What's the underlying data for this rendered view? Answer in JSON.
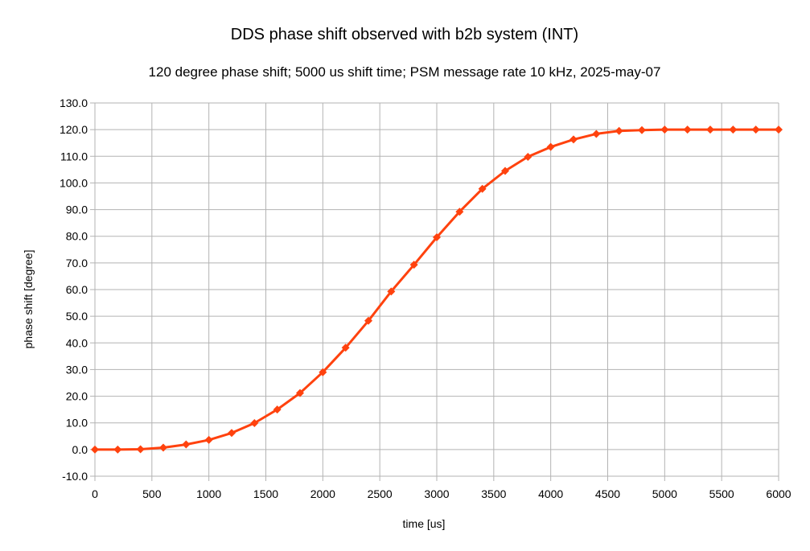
{
  "chart_data": {
    "type": "line",
    "title": "DDS phase shift observed with b2b system (INT)",
    "subtitle": "120 degree phase shift; 5000 us shift time; PSM message rate 10 kHz, 2025-may-07",
    "xlabel": "time [us]",
    "ylabel": "phase shift [degree]",
    "xlim": [
      0,
      6000
    ],
    "ylim": [
      -10,
      130
    ],
    "xticks": [
      0,
      500,
      1000,
      1500,
      2000,
      2500,
      3000,
      3500,
      4000,
      4500,
      5000,
      5500,
      6000
    ],
    "xtick_labels": [
      "0",
      "500",
      "1000",
      "1500",
      "2000",
      "2500",
      "3000",
      "3500",
      "4000",
      "4500",
      "5000",
      "5500",
      "6000"
    ],
    "yticks": [
      -10,
      0,
      10,
      20,
      30,
      40,
      50,
      60,
      70,
      80,
      90,
      100,
      110,
      120,
      130
    ],
    "ytick_labels": [
      "-10.0",
      "0.0",
      "10.0",
      "20.0",
      "30.0",
      "40.0",
      "50.0",
      "60.0",
      "70.0",
      "80.0",
      "90.0",
      "100.0",
      "110.0",
      "120.0",
      "130.0"
    ],
    "grid": true,
    "legend": "none",
    "line_color": "#ff420e",
    "x": [
      0,
      200,
      400,
      600,
      800,
      1000,
      1200,
      1400,
      1600,
      1800,
      2000,
      2200,
      2400,
      2600,
      2800,
      3000,
      3200,
      3400,
      3600,
      3800,
      4000,
      4200,
      4400,
      4600,
      4800,
      5000,
      5200,
      5400,
      5600,
      5800,
      6000
    ],
    "series": [
      {
        "values": [
          0.0,
          0.0,
          0.1,
          0.7,
          1.9,
          3.6,
          6.2,
          9.9,
          15.0,
          21.2,
          29.0,
          38.2,
          48.3,
          59.3,
          69.3,
          79.6,
          89.2,
          97.8,
          104.5,
          109.8,
          113.5,
          116.3,
          118.4,
          119.5,
          119.8,
          120.0,
          120.0,
          120.0,
          120.0,
          120.0,
          120.0
        ]
      }
    ]
  }
}
